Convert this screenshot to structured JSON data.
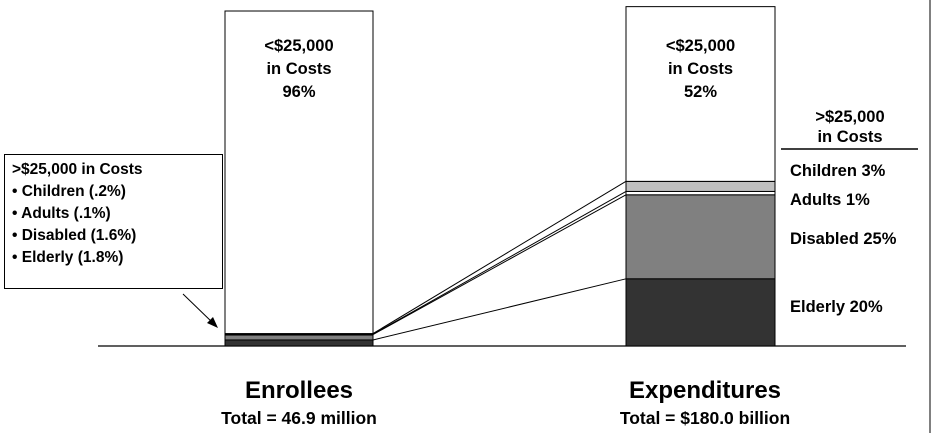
{
  "chart_data": {
    "type": "bar",
    "categories": [
      "Enrollees",
      "Expenditures"
    ],
    "totals": [
      "Total = 46.9 million",
      "Total = $180.0 billion"
    ],
    "stack_order_bottom_to_top": [
      "Elderly",
      "Disabled",
      "Adults",
      "Children",
      "<$25,000 in Costs"
    ],
    "series": [
      {
        "name": "Elderly",
        "values": [
          1.8,
          20
        ],
        "color": "#333333"
      },
      {
        "name": "Disabled",
        "values": [
          1.6,
          25
        ],
        "color": "#808080"
      },
      {
        "name": "Adults",
        "values": [
          0.1,
          1
        ],
        "color": "#ffffff"
      },
      {
        "name": "Children",
        "values": [
          0.2,
          3
        ],
        "color": "#c0c0c0"
      },
      {
        "name": "<$25,000 in Costs",
        "values": [
          96,
          52
        ],
        "color": "#ffffff"
      }
    ],
    "ylim": [
      0,
      100
    ],
    "top_labels": [
      [
        "<$25,000",
        "in Costs",
        "96%"
      ],
      [
        "<$25,000",
        "in Costs",
        "52%"
      ]
    ],
    "right_header": [
      ">$25,000",
      "in Costs"
    ],
    "right_labels": [
      "Children 3%",
      "Adults 1%",
      "Disabled 25%",
      "Elderly 20%"
    ]
  },
  "callout": {
    "title": ">$25,000 in Costs",
    "items": [
      "• Children (.2%)",
      "• Adults (.1%)",
      "• Disabled (1.6%)",
      "• Elderly (1.8%)"
    ]
  }
}
